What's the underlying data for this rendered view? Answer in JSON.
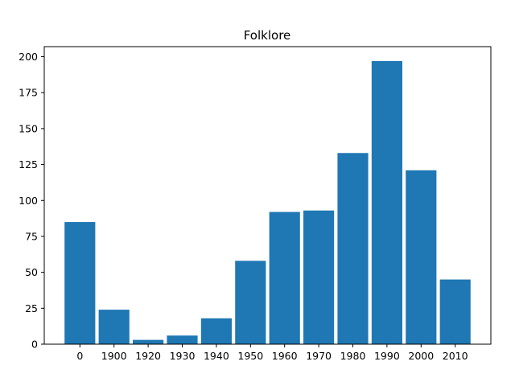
{
  "chart_data": {
    "type": "bar",
    "title": "Folklore",
    "xlabel": "",
    "ylabel": "",
    "categories": [
      "0",
      "1900",
      "1920",
      "1930",
      "1940",
      "1950",
      "1960",
      "1970",
      "1980",
      "1990",
      "2000",
      "2010"
    ],
    "values": [
      85,
      24,
      3,
      6,
      18,
      58,
      92,
      93,
      133,
      197,
      121,
      45
    ],
    "ylim": [
      0,
      207
    ],
    "yticks": [
      0,
      25,
      50,
      75,
      100,
      125,
      150,
      175,
      200
    ],
    "bar_color": "#1f77b4",
    "grid": false,
    "legend": "none"
  }
}
